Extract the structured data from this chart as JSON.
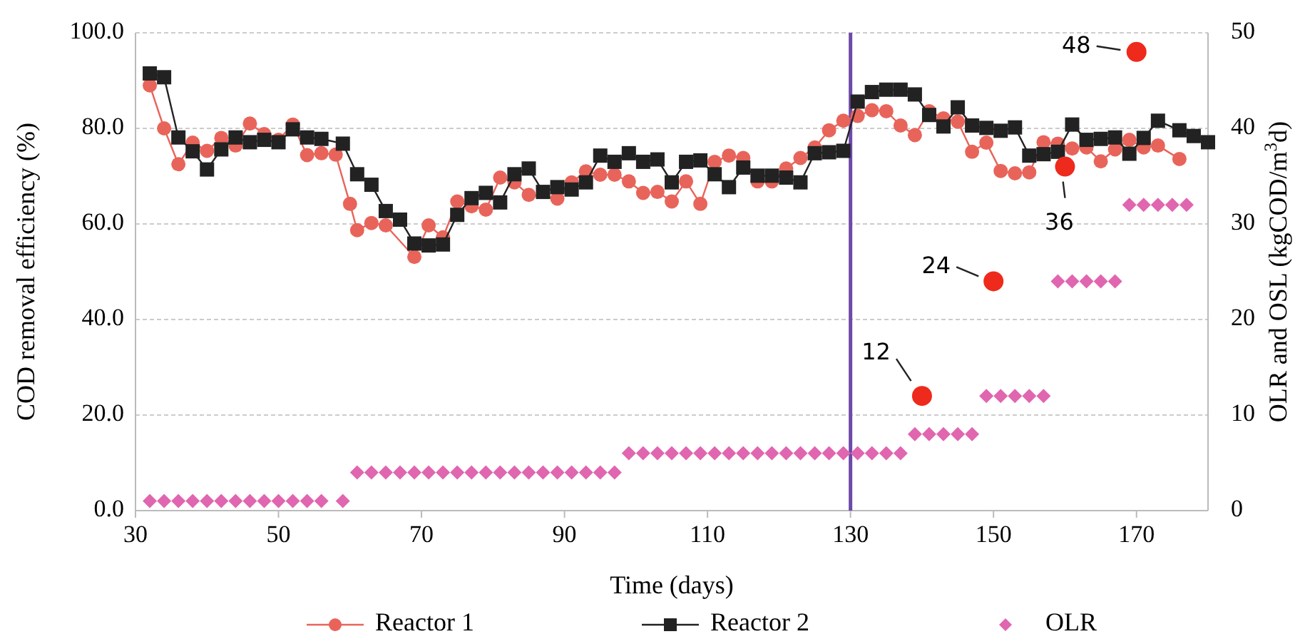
{
  "chart_data": {
    "type": "line",
    "xlabel": "Time (days)",
    "ylabel": "COD removal efficiency (%)",
    "y2label": "OLR and OSL (kgCOD/m$^{3}$d)",
    "xlim": [
      30,
      180
    ],
    "xticks": [
      30,
      50,
      70,
      90,
      110,
      130,
      150,
      170
    ],
    "ylim": [
      0,
      100
    ],
    "yticks": [
      {
        "value": 0,
        "label": "0.0"
      },
      {
        "value": 20,
        "label": "20.0"
      },
      {
        "value": 40,
        "label": "40.0"
      },
      {
        "value": 60,
        "label": "60.0"
      },
      {
        "value": 80,
        "label": "80.0"
      },
      {
        "value": 100,
        "label": "100.0"
      }
    ],
    "y2lim": [
      0,
      50
    ],
    "y2ticks": [
      0,
      10,
      20,
      30,
      40,
      50
    ],
    "grid": "y",
    "legend": "bottom",
    "ref_lines": [
      {
        "axis": "x",
        "value": 130,
        "color": "#6e4aa8"
      }
    ],
    "series": [
      {
        "name": "Reactor 1",
        "marker": "circle",
        "color": "#e8645a",
        "x": [
          32,
          34,
          36,
          38,
          40,
          42,
          44,
          46,
          48,
          50,
          52,
          54,
          56,
          58,
          60,
          61,
          63,
          65,
          69,
          71,
          73,
          75,
          77,
          79,
          81,
          83,
          85,
          87,
          89,
          91,
          93,
          95,
          97,
          99,
          101,
          103,
          105,
          107,
          109,
          111,
          113,
          115,
          117,
          119,
          121,
          123,
          125,
          127,
          129,
          131,
          133,
          135,
          137,
          139,
          141,
          143,
          145,
          147,
          149,
          151,
          153,
          155,
          157,
          159,
          161,
          163,
          165,
          167,
          169,
          171,
          173,
          176
        ],
        "values": [
          89,
          80,
          72.5,
          77,
          75.3,
          78,
          76.4,
          81,
          78.8,
          77.6,
          80.8,
          74.4,
          74.8,
          74.5,
          64.2,
          58.7,
          60.2,
          59.7,
          53.1,
          59.7,
          57.2,
          64.7,
          63.7,
          63,
          69.7,
          68.7,
          66.1,
          null,
          65.3,
          68.7,
          71,
          70.3,
          70.3,
          68.9,
          66.5,
          66.7,
          64.7,
          68.9,
          64.2,
          73,
          74.3,
          73.8,
          68.9,
          68.9,
          71.6,
          73.8,
          76,
          79.6,
          81.6,
          82.6,
          83.8,
          83.6,
          80.6,
          78.6,
          83.6,
          82.1,
          81.4,
          75.1,
          77,
          71.1,
          70.6,
          70.8,
          77.1,
          76.8,
          75.8,
          76,
          73.1,
          75.6,
          77.6,
          76,
          76.4,
          73.6
        ]
      },
      {
        "name": "Reactor 2",
        "marker": "square",
        "color": "#222222",
        "x": [
          32,
          34,
          36,
          38,
          40,
          42,
          44,
          46,
          48,
          50,
          52,
          54,
          56,
          59,
          61,
          63,
          65,
          67,
          69,
          71,
          73,
          75,
          77,
          79,
          81,
          83,
          85,
          87,
          89,
          91,
          93,
          95,
          97,
          99,
          101,
          103,
          105,
          107,
          109,
          111,
          113,
          115,
          117,
          119,
          121,
          123,
          125,
          127,
          129,
          131,
          133,
          135,
          137,
          139,
          141,
          143,
          145,
          147,
          149,
          151,
          153,
          155,
          157,
          159,
          161,
          163,
          165,
          167,
          169,
          171,
          173,
          176,
          178,
          180
        ],
        "values": [
          91.5,
          90.7,
          78.1,
          75.2,
          71.4,
          75.6,
          78.1,
          77.1,
          77.6,
          77.1,
          79.8,
          78.1,
          77.8,
          76.8,
          70.4,
          68.2,
          62.7,
          60.9,
          55.9,
          55.5,
          55.7,
          61.9,
          65.4,
          66.5,
          64.5,
          70.4,
          71.6,
          66.7,
          67.7,
          67.2,
          68.7,
          74.3,
          73,
          74.8,
          73,
          73.5,
          68.7,
          73,
          73.3,
          70.4,
          67.7,
          71.8,
          70.1,
          70.1,
          69.7,
          68.7,
          74.8,
          75,
          75.3,
          85.6,
          87.6,
          88.1,
          88.1,
          87.1,
          82.8,
          80.4,
          84.4,
          80.6,
          80.1,
          79.5,
          80.2,
          74.3,
          74.6,
          75.1,
          80.8,
          77.6,
          77.8,
          78.1,
          74.7,
          78,
          81.6,
          79.6,
          78.4,
          77.1
        ]
      },
      {
        "name": "OLR",
        "type": "scatter",
        "marker": "diamond",
        "axis": "y2",
        "color": "#e066b0",
        "x": [
          32,
          34,
          36,
          38,
          40,
          42,
          44,
          46,
          48,
          50,
          52,
          54,
          56,
          59,
          61,
          63,
          65,
          67,
          69,
          71,
          73,
          75,
          77,
          79,
          81,
          83,
          85,
          87,
          89,
          91,
          93,
          95,
          97,
          99,
          101,
          103,
          105,
          107,
          109,
          111,
          113,
          115,
          117,
          119,
          121,
          123,
          125,
          127,
          129,
          131,
          133,
          135,
          137,
          139,
          141,
          143,
          145,
          147,
          149,
          151,
          153,
          155,
          157,
          159,
          161,
          163,
          165,
          167,
          169,
          171,
          173,
          175,
          177
        ],
        "values": [
          1,
          1,
          1,
          1,
          1,
          1,
          1,
          1,
          1,
          1,
          1,
          1,
          1,
          1,
          4,
          4,
          4,
          4,
          4,
          4,
          4,
          4,
          4,
          4,
          4,
          4,
          4,
          4,
          4,
          4,
          4,
          4,
          4,
          6,
          6,
          6,
          6,
          6,
          6,
          6,
          6,
          6,
          6,
          6,
          6,
          6,
          6,
          6,
          6,
          6,
          6,
          6,
          6,
          8,
          8,
          8,
          8,
          8,
          12,
          12,
          12,
          12,
          12,
          24,
          24,
          24,
          24,
          24,
          32,
          32,
          32,
          32,
          32
        ]
      },
      {
        "type": "scatter",
        "marker": "circle",
        "axis": "y2",
        "color": "#ee2a1c",
        "x": [
          140,
          150,
          160,
          170
        ],
        "values": [
          12,
          24,
          36,
          48
        ],
        "value_labels": [
          "12",
          "24",
          "36",
          "48"
        ]
      }
    ]
  }
}
